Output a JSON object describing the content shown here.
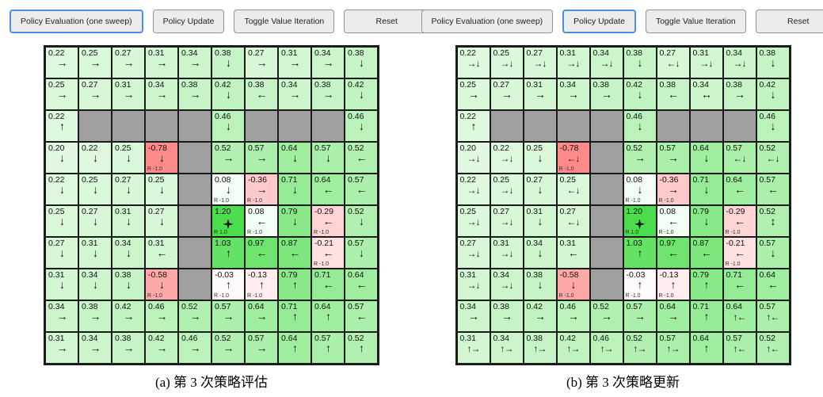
{
  "colors": {
    "active_button_border": "#4a8fe2",
    "button_bg": "#ececec",
    "button_border": "#929292",
    "grid_border": "#1b1b1b",
    "wall_fill": "#a0a0a0",
    "goal_fill_example": "#4bdd4b",
    "negative_fill_example": "#ff8a8a"
  },
  "arrow_glyphs": {
    "right": "→",
    "left": "←",
    "up": "↑",
    "down": "↓",
    "left,right": "↔",
    "up,down": "↕",
    "right,down": "→↓",
    "left,down": "←↓",
    "up,left": "↑←",
    "up,right": "↑→"
  },
  "panels": [
    {
      "caption": "(a) 第 3 次策略评估",
      "buttons": [
        {
          "label": "Policy Evaluation (one sweep)",
          "active": true
        },
        {
          "label": "Policy Update",
          "active": false
        },
        {
          "label": "Toggle Value Iteration",
          "active": false
        },
        {
          "label": "Reset",
          "active": false
        }
      ],
      "grid": [
        [
          {
            "v": "0.22",
            "a": "right"
          },
          {
            "v": "0.25",
            "a": "right"
          },
          {
            "v": "0.27",
            "a": "right"
          },
          {
            "v": "0.31",
            "a": "right"
          },
          {
            "v": "0.34",
            "a": "right"
          },
          {
            "v": "0.38",
            "a": "down"
          },
          {
            "v": "0.27",
            "a": "right"
          },
          {
            "v": "0.31",
            "a": "right"
          },
          {
            "v": "0.34",
            "a": "right"
          },
          {
            "v": "0.38",
            "a": "down"
          }
        ],
        [
          {
            "v": "0.25",
            "a": "right"
          },
          {
            "v": "0.27",
            "a": "right"
          },
          {
            "v": "0.31",
            "a": "right"
          },
          {
            "v": "0.34",
            "a": "right"
          },
          {
            "v": "0.38",
            "a": "right"
          },
          {
            "v": "0.42",
            "a": "down"
          },
          {
            "v": "0.38",
            "a": "left"
          },
          {
            "v": "0.34",
            "a": "right"
          },
          {
            "v": "0.38",
            "a": "right"
          },
          {
            "v": "0.42",
            "a": "down"
          }
        ],
        [
          {
            "v": "0.22",
            "a": "up"
          },
          {
            "wall": true
          },
          {
            "wall": true
          },
          {
            "wall": true
          },
          {
            "wall": true
          },
          {
            "v": "0.46",
            "a": "down"
          },
          {
            "wall": true
          },
          {
            "wall": true
          },
          {
            "wall": true
          },
          {
            "v": "0.46",
            "a": "down"
          }
        ],
        [
          {
            "v": "0.20",
            "a": "down"
          },
          {
            "v": "0.22",
            "a": "down"
          },
          {
            "v": "0.25",
            "a": "down"
          },
          {
            "v": "-0.78",
            "a": "down",
            "r": "R -1.0"
          },
          {
            "wall": true
          },
          {
            "v": "0.52",
            "a": "right"
          },
          {
            "v": "0.57",
            "a": "right"
          },
          {
            "v": "0.64",
            "a": "down"
          },
          {
            "v": "0.57",
            "a": "down"
          },
          {
            "v": "0.52",
            "a": "left"
          }
        ],
        [
          {
            "v": "0.22",
            "a": "down"
          },
          {
            "v": "0.25",
            "a": "down"
          },
          {
            "v": "0.27",
            "a": "down"
          },
          {
            "v": "0.25",
            "a": "down"
          },
          {
            "wall": true
          },
          {
            "v": "0.08",
            "a": "down",
            "r": "R -1.0"
          },
          {
            "v": "-0.36",
            "a": "right",
            "r": "R -1.0"
          },
          {
            "v": "0.71",
            "a": "down"
          },
          {
            "v": "0.64",
            "a": "left"
          },
          {
            "v": "0.57",
            "a": "left"
          }
        ],
        [
          {
            "v": "0.25",
            "a": "down"
          },
          {
            "v": "0.27",
            "a": "down"
          },
          {
            "v": "0.31",
            "a": "down"
          },
          {
            "v": "0.27",
            "a": "down"
          },
          {
            "wall": true
          },
          {
            "v": "1.20",
            "a": "goal",
            "r": "R 1.0",
            "goal": true
          },
          {
            "v": "0.08",
            "a": "left",
            "r": "R -1.0"
          },
          {
            "v": "0.79",
            "a": "down"
          },
          {
            "v": "-0.29",
            "a": "left",
            "r": "R -1.0"
          },
          {
            "v": "0.52",
            "a": "down"
          }
        ],
        [
          {
            "v": "0.27",
            "a": "down"
          },
          {
            "v": "0.31",
            "a": "down"
          },
          {
            "v": "0.34",
            "a": "down"
          },
          {
            "v": "0.31",
            "a": "left"
          },
          {
            "wall": true
          },
          {
            "v": "1.03",
            "a": "up"
          },
          {
            "v": "0.97",
            "a": "left"
          },
          {
            "v": "0.87",
            "a": "left"
          },
          {
            "v": "-0.21",
            "a": "left",
            "r": "R -1.0"
          },
          {
            "v": "0.57",
            "a": "down"
          }
        ],
        [
          {
            "v": "0.31",
            "a": "down"
          },
          {
            "v": "0.34",
            "a": "down"
          },
          {
            "v": "0.38",
            "a": "down"
          },
          {
            "v": "-0.58",
            "a": "down",
            "r": "R -1.0"
          },
          {
            "wall": true
          },
          {
            "v": "-0.03",
            "a": "up",
            "r": "R -1.0"
          },
          {
            "v": "-0.13",
            "a": "up",
            "r": "R -1.0"
          },
          {
            "v": "0.79",
            "a": "up"
          },
          {
            "v": "0.71",
            "a": "left"
          },
          {
            "v": "0.64",
            "a": "left"
          }
        ],
        [
          {
            "v": "0.34",
            "a": "right"
          },
          {
            "v": "0.38",
            "a": "right"
          },
          {
            "v": "0.42",
            "a": "right"
          },
          {
            "v": "0.46",
            "a": "right"
          },
          {
            "v": "0.52",
            "a": "right"
          },
          {
            "v": "0.57",
            "a": "right"
          },
          {
            "v": "0.64",
            "a": "right"
          },
          {
            "v": "0.71",
            "a": "up"
          },
          {
            "v": "0.64",
            "a": "up"
          },
          {
            "v": "0.57",
            "a": "left"
          }
        ],
        [
          {
            "v": "0.31",
            "a": "right"
          },
          {
            "v": "0.34",
            "a": "right"
          },
          {
            "v": "0.38",
            "a": "right"
          },
          {
            "v": "0.42",
            "a": "right"
          },
          {
            "v": "0.46",
            "a": "right"
          },
          {
            "v": "0.52",
            "a": "right"
          },
          {
            "v": "0.57",
            "a": "right"
          },
          {
            "v": "0.64",
            "a": "up"
          },
          {
            "v": "0.57",
            "a": "up"
          },
          {
            "v": "0.52",
            "a": "up"
          }
        ]
      ]
    },
    {
      "caption": "(b) 第 3 次策略更新",
      "buttons": [
        {
          "label": "Policy Evaluation (one sweep)",
          "active": false
        },
        {
          "label": "Policy Update",
          "active": true
        },
        {
          "label": "Toggle Value Iteration",
          "active": false
        },
        {
          "label": "Reset",
          "active": false
        }
      ],
      "grid": [
        [
          {
            "v": "0.22",
            "a": "right,down"
          },
          {
            "v": "0.25",
            "a": "right,down"
          },
          {
            "v": "0.27",
            "a": "right,down"
          },
          {
            "v": "0.31",
            "a": "right,down"
          },
          {
            "v": "0.34",
            "a": "right,down"
          },
          {
            "v": "0.38",
            "a": "down"
          },
          {
            "v": "0.27",
            "a": "left,down"
          },
          {
            "v": "0.31",
            "a": "right,down"
          },
          {
            "v": "0.34",
            "a": "right,down"
          },
          {
            "v": "0.38",
            "a": "down"
          }
        ],
        [
          {
            "v": "0.25",
            "a": "right"
          },
          {
            "v": "0.27",
            "a": "right"
          },
          {
            "v": "0.31",
            "a": "right"
          },
          {
            "v": "0.34",
            "a": "right"
          },
          {
            "v": "0.38",
            "a": "right"
          },
          {
            "v": "0.42",
            "a": "down"
          },
          {
            "v": "0.38",
            "a": "left"
          },
          {
            "v": "0.34",
            "a": "left,right"
          },
          {
            "v": "0.38",
            "a": "right"
          },
          {
            "v": "0.42",
            "a": "down"
          }
        ],
        [
          {
            "v": "0.22",
            "a": "up"
          },
          {
            "wall": true
          },
          {
            "wall": true
          },
          {
            "wall": true
          },
          {
            "wall": true
          },
          {
            "v": "0.46",
            "a": "down"
          },
          {
            "wall": true
          },
          {
            "wall": true
          },
          {
            "wall": true
          },
          {
            "v": "0.46",
            "a": "down"
          }
        ],
        [
          {
            "v": "0.20",
            "a": "right,down"
          },
          {
            "v": "0.22",
            "a": "right,down"
          },
          {
            "v": "0.25",
            "a": "down"
          },
          {
            "v": "-0.78",
            "a": "left,down",
            "r": "R -1.0"
          },
          {
            "wall": true
          },
          {
            "v": "0.52",
            "a": "right"
          },
          {
            "v": "0.57",
            "a": "right"
          },
          {
            "v": "0.64",
            "a": "down"
          },
          {
            "v": "0.57",
            "a": "left,down"
          },
          {
            "v": "0.52",
            "a": "left,down"
          }
        ],
        [
          {
            "v": "0.22",
            "a": "right,down"
          },
          {
            "v": "0.25",
            "a": "right,down"
          },
          {
            "v": "0.27",
            "a": "down"
          },
          {
            "v": "0.25",
            "a": "left,down"
          },
          {
            "wall": true
          },
          {
            "v": "0.08",
            "a": "down",
            "r": "R -1.0"
          },
          {
            "v": "-0.36",
            "a": "right",
            "r": "R -1.0"
          },
          {
            "v": "0.71",
            "a": "down"
          },
          {
            "v": "0.64",
            "a": "left"
          },
          {
            "v": "0.57",
            "a": "left"
          }
        ],
        [
          {
            "v": "0.25",
            "a": "right,down"
          },
          {
            "v": "0.27",
            "a": "right,down"
          },
          {
            "v": "0.31",
            "a": "down"
          },
          {
            "v": "0.27",
            "a": "left,down"
          },
          {
            "wall": true
          },
          {
            "v": "1.20",
            "a": "goal",
            "r": "R 1.0",
            "goal": true
          },
          {
            "v": "0.08",
            "a": "left",
            "r": "R -1.0"
          },
          {
            "v": "0.79",
            "a": "down"
          },
          {
            "v": "-0.29",
            "a": "left",
            "r": "R -1.0"
          },
          {
            "v": "0.52",
            "a": "up,down"
          }
        ],
        [
          {
            "v": "0.27",
            "a": "right,down"
          },
          {
            "v": "0.31",
            "a": "right,down"
          },
          {
            "v": "0.34",
            "a": "down"
          },
          {
            "v": "0.31",
            "a": "left"
          },
          {
            "wall": true
          },
          {
            "v": "1.03",
            "a": "up"
          },
          {
            "v": "0.97",
            "a": "left"
          },
          {
            "v": "0.87",
            "a": "left"
          },
          {
            "v": "-0.21",
            "a": "left",
            "r": "R -1.0"
          },
          {
            "v": "0.57",
            "a": "down"
          }
        ],
        [
          {
            "v": "0.31",
            "a": "right,down"
          },
          {
            "v": "0.34",
            "a": "right,down"
          },
          {
            "v": "0.38",
            "a": "down"
          },
          {
            "v": "-0.58",
            "a": "down",
            "r": "R -1.0"
          },
          {
            "wall": true
          },
          {
            "v": "-0.03",
            "a": "up",
            "r": "R -1.0"
          },
          {
            "v": "-0.13",
            "a": "up",
            "r": "R -1.0"
          },
          {
            "v": "0.79",
            "a": "up"
          },
          {
            "v": "0.71",
            "a": "left"
          },
          {
            "v": "0.64",
            "a": "left"
          }
        ],
        [
          {
            "v": "0.34",
            "a": "right"
          },
          {
            "v": "0.38",
            "a": "right"
          },
          {
            "v": "0.42",
            "a": "right"
          },
          {
            "v": "0.46",
            "a": "right"
          },
          {
            "v": "0.52",
            "a": "right"
          },
          {
            "v": "0.57",
            "a": "right"
          },
          {
            "v": "0.64",
            "a": "right"
          },
          {
            "v": "0.71",
            "a": "up"
          },
          {
            "v": "0.64",
            "a": "up,left"
          },
          {
            "v": "0.57",
            "a": "up,left"
          }
        ],
        [
          {
            "v": "0.31",
            "a": "up,right"
          },
          {
            "v": "0.34",
            "a": "up,right"
          },
          {
            "v": "0.38",
            "a": "up,right"
          },
          {
            "v": "0.42",
            "a": "up,right"
          },
          {
            "v": "0.46",
            "a": "up,right"
          },
          {
            "v": "0.52",
            "a": "up,right"
          },
          {
            "v": "0.57",
            "a": "up,right"
          },
          {
            "v": "0.64",
            "a": "up"
          },
          {
            "v": "0.57",
            "a": "up,left"
          },
          {
            "v": "0.52",
            "a": "up,left"
          }
        ]
      ]
    }
  ]
}
